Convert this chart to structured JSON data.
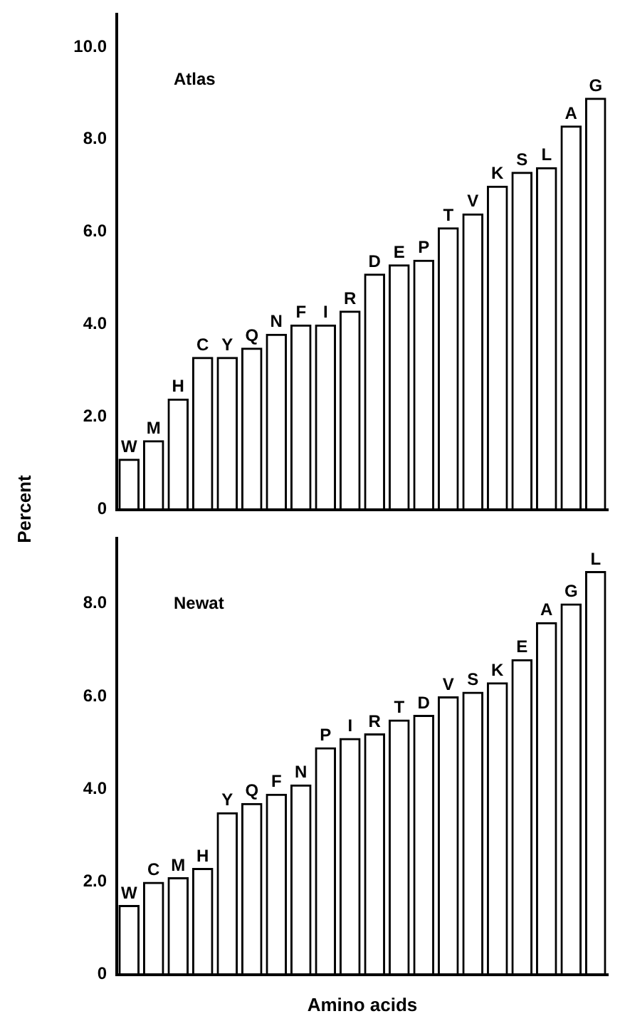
{
  "chart_data": [
    {
      "type": "bar",
      "title": "Atlas",
      "ylabel": "Percent",
      "categories": [
        "W",
        "M",
        "H",
        "C",
        "Y",
        "Q",
        "N",
        "F",
        "I",
        "R",
        "D",
        "E",
        "P",
        "T",
        "V",
        "K",
        "S",
        "L",
        "A",
        "G"
      ],
      "values": [
        1.1,
        1.5,
        2.4,
        3.3,
        3.3,
        3.5,
        3.8,
        4.0,
        4.0,
        4.3,
        5.1,
        5.3,
        5.4,
        6.1,
        6.4,
        7.0,
        7.3,
        7.4,
        8.3,
        8.9
      ],
      "color": "#000000",
      "ylim": [
        0,
        10.7
      ],
      "yticks": [
        0,
        {
          "value": 2,
          "label": "2.0"
        },
        {
          "value": 4,
          "label": "4.0"
        },
        {
          "value": 6,
          "label": "6.0"
        },
        {
          "value": 8,
          "label": "8.0"
        },
        {
          "value": 10,
          "label": "10.0"
        }
      ],
      "grid": false,
      "legend": false
    },
    {
      "type": "bar",
      "title": "Newat",
      "xlabel": "Amino acids",
      "categories": [
        "W",
        "C",
        "M",
        "H",
        "Y",
        "Q",
        "F",
        "N",
        "P",
        "I",
        "R",
        "T",
        "D",
        "V",
        "S",
        "K",
        "E",
        "A",
        "G",
        "L"
      ],
      "values": [
        1.5,
        2.0,
        2.1,
        2.3,
        3.5,
        3.7,
        3.9,
        4.1,
        4.9,
        5.1,
        5.2,
        5.5,
        5.6,
        6.0,
        6.1,
        6.3,
        6.8,
        7.6,
        8.0,
        8.7
      ],
      "color": "#000000",
      "ylim": [
        0,
        9.4
      ],
      "yticks": [
        0,
        {
          "value": 2,
          "label": "2.0"
        },
        {
          "value": 4,
          "label": "4.0"
        },
        {
          "value": 6,
          "label": "6.0"
        },
        {
          "value": 8,
          "label": "8.0"
        }
      ],
      "grid": false,
      "legend": false
    }
  ]
}
